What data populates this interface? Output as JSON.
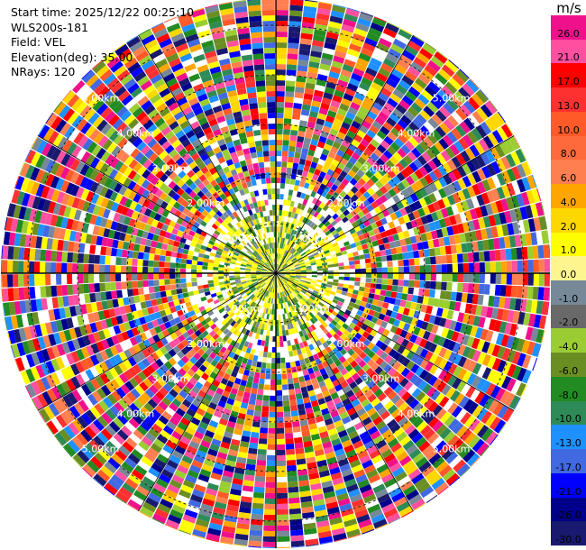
{
  "header": {
    "start_time": "Start time: 2025/12/22 00:25:10",
    "site": "WLS200s-181",
    "field": "Field: VEL",
    "elevation": "Elevation(deg): 35.00",
    "nrays": "NRays: 120"
  },
  "colorbar": {
    "unit": "m/s",
    "ticks": [
      "26.0",
      "21.0",
      "17.0",
      "13.0",
      "10.0",
      "8.0",
      "6.0",
      "4.0",
      "2.0",
      "1.0",
      "0.0",
      "-1.0",
      "-2.0",
      "-4.0",
      "-6.0",
      "-8.0",
      "-10.0",
      "-13.0",
      "-17.0",
      "-21.0",
      "-26.0",
      "-30.0"
    ],
    "colors": [
      "#f0108c",
      "#ff4fa0",
      "#ff0000",
      "#ff3030",
      "#ff5a28",
      "#ff6a3c",
      "#ff7f50",
      "#ffa500",
      "#ffd700",
      "#ffff00",
      "#fff68f",
      "#778899",
      "#696969",
      "#9acd32",
      "#6b8e23",
      "#228b22",
      "#2e8b57",
      "#1e90ff",
      "#4169e1",
      "#0000ff",
      "#00008b",
      "#191970"
    ]
  },
  "chart_data": {
    "type": "heatmap",
    "projection": "polar PPI",
    "field": "VEL",
    "units": "m/s",
    "nrays": 120,
    "range_rings_km": [
      1.0,
      2.0,
      3.0,
      4.0,
      5.0
    ],
    "ring_labels": [
      "1.00km",
      "2.00km",
      "3.00km",
      "4.00km",
      "5.00km"
    ],
    "color_levels": [
      26.0,
      21.0,
      17.0,
      13.0,
      10.0,
      8.0,
      6.0,
      4.0,
      2.0,
      1.0,
      0.0,
      -1.0,
      -2.0,
      -4.0,
      -6.0,
      -8.0,
      -10.0,
      -13.0,
      -17.0,
      -21.0,
      -26.0,
      -30.0
    ],
    "near_field": "yellow and green returns within about 1 km",
    "far_field": "noisy multicolor returns out to about 5.5 km"
  }
}
